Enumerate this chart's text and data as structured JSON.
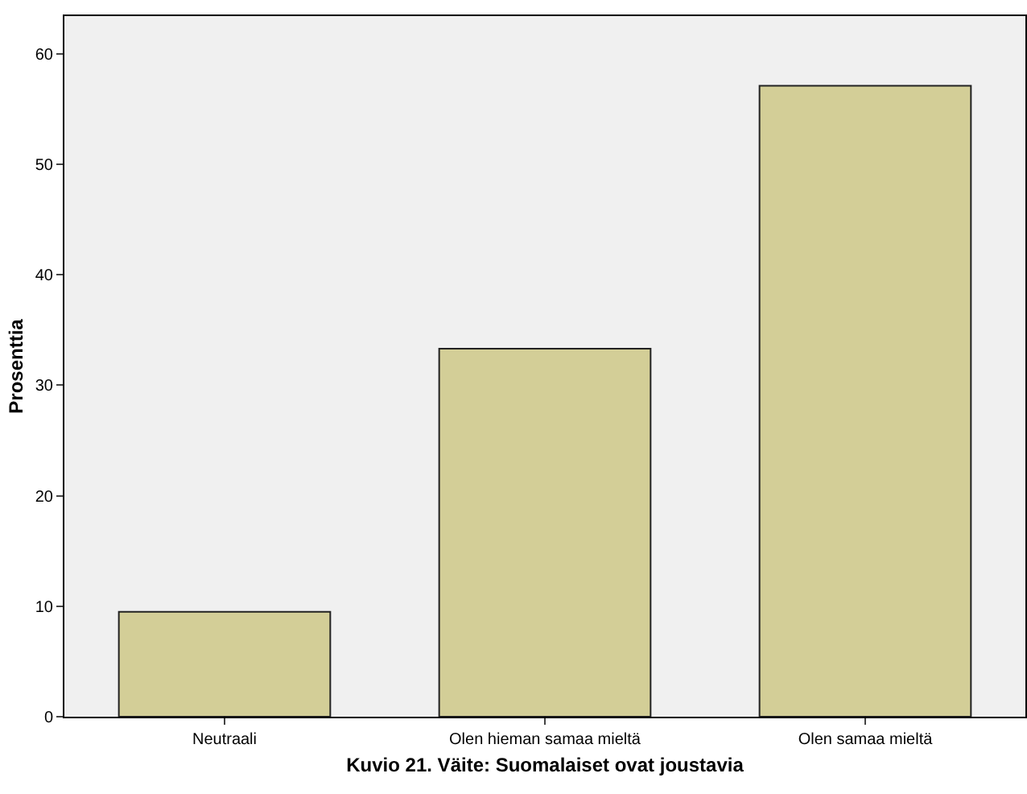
{
  "chart_data": {
    "type": "bar",
    "xlabel": "Kuvio 21. Väite: Suomalaiset ovat joustavia",
    "ylabel": "Prosenttia",
    "categories": [
      "Neutraali",
      "Olen hieman samaa mieltä",
      "Olen samaa mieltä"
    ],
    "values": [
      9.5,
      33.3,
      57.1
    ],
    "color": "#d3ce97",
    "ylim": [
      0,
      63.4
    ],
    "yticks": [
      0,
      10,
      20,
      30,
      40,
      50,
      60
    ],
    "grid": false
  }
}
